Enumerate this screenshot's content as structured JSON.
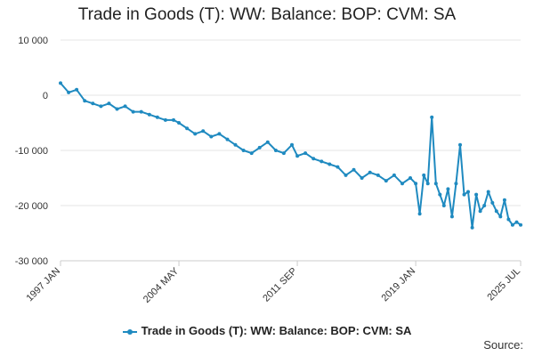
{
  "chart_data": {
    "type": "line",
    "title": "Trade in Goods (T): WW: Balance: BOP: CVM: SA",
    "xlabel": "",
    "ylabel": "",
    "x_tick_labels": [
      "1997 JAN",
      "2004 MAY",
      "2011 SEP",
      "2019 JAN",
      "2025 JUL"
    ],
    "y_tick_labels": [
      "10 000",
      "0",
      "-10 000",
      "-20 000",
      "-30 000"
    ],
    "y_ticks": [
      10000,
      0,
      -10000,
      -20000,
      -30000
    ],
    "ylim": [
      -30000,
      10000
    ],
    "grid": true,
    "legend_position": "bottom",
    "color": "#1f8ac0",
    "series": [
      {
        "name": "Trade in Goods (T): WW: Balance: BOP: CVM: SA",
        "x": [
          "1997-01",
          "1997-07",
          "1998-01",
          "1998-07",
          "1999-01",
          "1999-07",
          "2000-01",
          "2000-07",
          "2001-01",
          "2001-07",
          "2002-01",
          "2002-07",
          "2003-01",
          "2003-07",
          "2004-01",
          "2004-05",
          "2004-11",
          "2005-05",
          "2005-11",
          "2006-05",
          "2006-11",
          "2007-05",
          "2007-11",
          "2008-05",
          "2008-11",
          "2009-05",
          "2009-11",
          "2010-05",
          "2010-11",
          "2011-05",
          "2011-09",
          "2012-03",
          "2012-09",
          "2013-03",
          "2013-09",
          "2014-03",
          "2014-09",
          "2015-03",
          "2015-09",
          "2016-03",
          "2016-09",
          "2017-03",
          "2017-09",
          "2018-03",
          "2018-09",
          "2019-01",
          "2019-04",
          "2019-07",
          "2019-10",
          "2020-01",
          "2020-04",
          "2020-07",
          "2020-10",
          "2021-01",
          "2021-04",
          "2021-07",
          "2021-10",
          "2022-01",
          "2022-04",
          "2022-07",
          "2022-10",
          "2023-01",
          "2023-04",
          "2023-07",
          "2023-10",
          "2024-01",
          "2024-04",
          "2024-07",
          "2024-10",
          "2025-01",
          "2025-04",
          "2025-07"
        ],
        "values": [
          2200,
          500,
          1000,
          -1000,
          -1500,
          -2000,
          -1500,
          -2500,
          -2000,
          -3000,
          -3000,
          -3500,
          -4000,
          -4500,
          -4500,
          -5000,
          -6000,
          -7000,
          -6500,
          -7500,
          -7000,
          -8000,
          -9000,
          -10000,
          -10500,
          -9500,
          -8500,
          -10000,
          -10500,
          -9000,
          -11000,
          -10500,
          -11500,
          -12000,
          -12500,
          -13000,
          -14500,
          -13500,
          -15000,
          -14000,
          -14500,
          -15500,
          -14500,
          -16000,
          -15000,
          -16000,
          -21500,
          -14500,
          -16000,
          -4000,
          -16000,
          -18000,
          -20000,
          -17000,
          -22000,
          -16000,
          -9000,
          -18000,
          -17500,
          -24000,
          -18000,
          -21000,
          -20000,
          -17500,
          -19500,
          -21000,
          -22000,
          -19000,
          -22500,
          -23500,
          -23000,
          -23500
        ]
      }
    ]
  },
  "source_label": "Source:"
}
